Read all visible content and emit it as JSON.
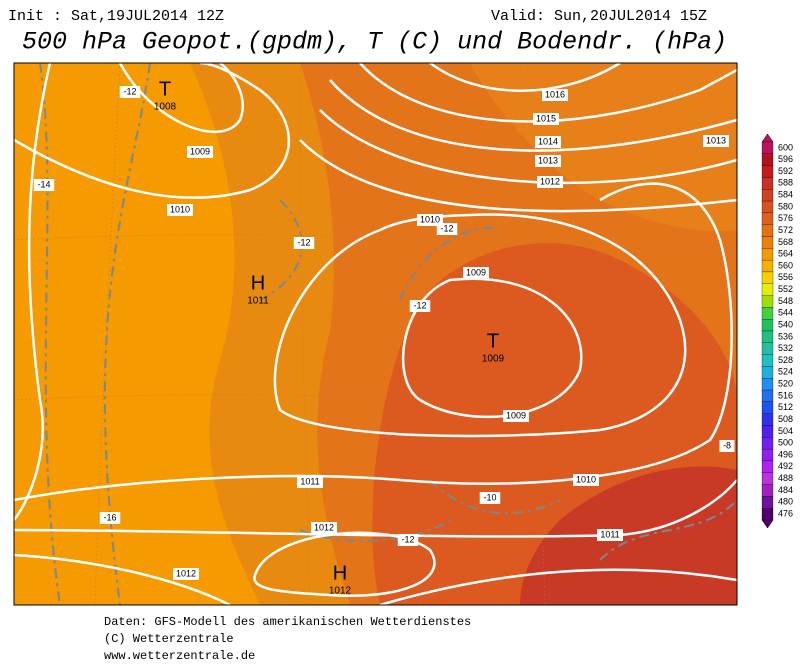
{
  "header": {
    "init": "Init : Sat,19JUL2014 12Z",
    "valid": "Valid: Sun,20JUL2014 15Z",
    "title": "500 hPa Geopot.(gpdm), T (C) und Bodendr. (hPa)"
  },
  "map": {
    "pressure_centers": [
      {
        "symbol": "T",
        "label": "1008"
      },
      {
        "symbol": "H",
        "label": "1011"
      },
      {
        "symbol": "T",
        "label": "1009"
      },
      {
        "symbol": "H",
        "label": "1012"
      }
    ],
    "isobar_labels": [
      "1016",
      "1015",
      "1014",
      "1013",
      "1012",
      "1013",
      "1009",
      "1010",
      "1010",
      "1009",
      "1009",
      "1010",
      "1011",
      "1011",
      "1012",
      "1012"
    ],
    "temperature_labels": [
      "-12",
      "-14",
      "-12",
      "-12",
      "-12",
      "-10",
      "-12",
      "-16",
      "-8"
    ]
  },
  "legend": {
    "labels": [
      "600",
      "596",
      "592",
      "588",
      "584",
      "580",
      "576",
      "572",
      "568",
      "564",
      "560",
      "556",
      "552",
      "548",
      "544",
      "540",
      "536",
      "532",
      "528",
      "524",
      "520",
      "516",
      "512",
      "508",
      "504",
      "500",
      "496",
      "492",
      "488",
      "484",
      "480",
      "476"
    ]
  },
  "footer": {
    "lines": [
      "Daten: GFS-Modell des amerikanischen Wetterdienstes",
      "(C) Wetterzentrale",
      "www.wetterzentrale.de"
    ]
  }
}
